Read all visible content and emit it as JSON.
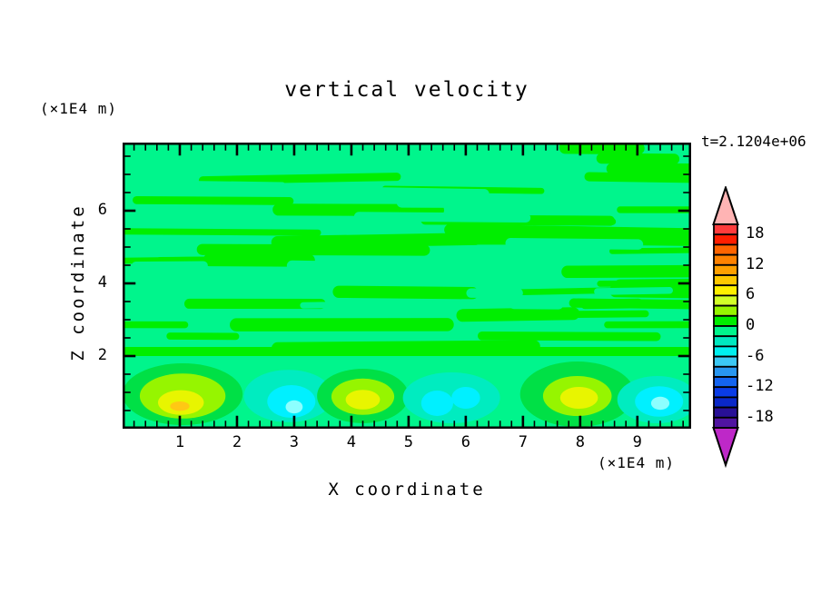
{
  "title": "vertical velocity",
  "timestamp": "t=2.1204e+06",
  "axes": {
    "x": {
      "title": "X coordinate",
      "unit_label": "(×1E4 m)",
      "range": [
        0,
        9.94
      ],
      "major_ticks": [
        1,
        2,
        3,
        4,
        5,
        6,
        7,
        8,
        9
      ],
      "major_tick_labels": [
        "1",
        "2",
        "3",
        "4",
        "5",
        "6",
        "7",
        "8",
        "9"
      ],
      "minor_tick_step": 0.2
    },
    "z": {
      "title": "Z coordinate",
      "unit_label": "(×1E4 m)",
      "range": [
        0,
        7.875
      ],
      "major_ticks": [
        2,
        4,
        6
      ],
      "major_tick_labels": [
        "2",
        "4",
        "6"
      ],
      "minor_tick_step": 0.5
    }
  },
  "colorbar": {
    "labeled_values": [
      18,
      12,
      6,
      0,
      -6,
      -12,
      -18
    ],
    "cell_value_step": 2,
    "value_min": -20,
    "value_max": 20,
    "over_arrow_color": "#ffb4b4",
    "under_arrow_color": "#be28c8"
  },
  "chart_data": {
    "type": "heatmap",
    "title": "vertical velocity",
    "xlabel": "X coordinate (×1E4 m)",
    "ylabel": "Z coordinate (×1E4 m)",
    "time_annotation": "t=2.1204e+06",
    "x_range": [
      0,
      9.94
    ],
    "z_range": [
      0,
      7.875
    ],
    "contour_interval": 2,
    "level_min": -20,
    "level_max": 20,
    "palette_ascending": [
      "#5014a0",
      "#281096",
      "#0a28c8",
      "#0a3ce6",
      "#1464f0",
      "#2896f0",
      "#3cc8f5",
      "#00f0f0",
      "#00e8c0",
      "#00f58c",
      "#00ee00",
      "#96f500",
      "#d2ff28",
      "#fff000",
      "#ffc800",
      "#ffa000",
      "#ff8200",
      "#ff6400",
      "#ff1e00",
      "#ff3c3c"
    ],
    "field_colors": {
      "background": "#00f58c",
      "streak": "#00ee00",
      "blob_ring_green": "#00e046",
      "blob_light_green": "#96f500",
      "blob_yellow": "#e8f500",
      "blob_gold": "#ffc814",
      "blob_turquoise": "#00ecc0",
      "blob_cyan": "#00f0ff",
      "blob_pale_cyan": "#8cffff"
    },
    "texture": {
      "description": "alternating horizontal streaks of 0to2 green over -2to0 spring-green filling z=2 to top",
      "seed": 9,
      "streak_region_z": [
        2.0,
        7.875
      ],
      "band_z": [
        2.0,
        2.25
      ]
    },
    "blobs": [
      {
        "sign": "positive",
        "center_x": 1.05,
        "center_z": 0.95,
        "peak_range": "8 to 10",
        "layers": [
          {
            "color_key": "blob_ring_green",
            "x": 1.05,
            "z": 0.95,
            "rx": 1.05,
            "rz": 0.85
          },
          {
            "color_key": "blob_light_green",
            "x": 1.05,
            "z": 0.9,
            "rx": 0.75,
            "rz": 0.62
          },
          {
            "color_key": "blob_yellow",
            "x": 1.02,
            "z": 0.72,
            "rx": 0.4,
            "rz": 0.34
          },
          {
            "color_key": "blob_gold",
            "x": 1.0,
            "z": 0.62,
            "rx": 0.17,
            "rz": 0.13
          }
        ]
      },
      {
        "sign": "negative",
        "center_x": 2.9,
        "center_z": 0.85,
        "peak_range": "-8 to -6",
        "layers": [
          {
            "color_key": "blob_turquoise",
            "x": 2.9,
            "z": 0.9,
            "rx": 0.78,
            "rz": 0.72
          },
          {
            "color_key": "blob_cyan",
            "x": 2.95,
            "z": 0.75,
            "rx": 0.42,
            "rz": 0.45
          },
          {
            "color_key": "blob_pale_cyan",
            "x": 3.0,
            "z": 0.6,
            "rx": 0.15,
            "rz": 0.18
          }
        ]
      },
      {
        "sign": "positive",
        "center_x": 4.2,
        "center_z": 0.9,
        "peak_range": "6 to 8",
        "layers": [
          {
            "color_key": "blob_ring_green",
            "x": 4.2,
            "z": 0.9,
            "rx": 0.8,
            "rz": 0.75
          },
          {
            "color_key": "blob_light_green",
            "x": 4.2,
            "z": 0.88,
            "rx": 0.55,
            "rz": 0.5
          },
          {
            "color_key": "blob_yellow",
            "x": 4.2,
            "z": 0.8,
            "rx": 0.3,
            "rz": 0.27
          }
        ]
      },
      {
        "sign": "negative",
        "center_x": 5.75,
        "center_z": 0.85,
        "peak_range": "-8 to -6",
        "layers": [
          {
            "color_key": "blob_turquoise",
            "x": 5.75,
            "z": 0.85,
            "rx": 0.85,
            "rz": 0.7
          },
          {
            "color_key": "blob_cyan",
            "x": 5.5,
            "z": 0.7,
            "rx": 0.28,
            "rz": 0.35
          },
          {
            "color_key": "blob_cyan",
            "x": 6.0,
            "z": 0.85,
            "rx": 0.25,
            "rz": 0.3
          }
        ]
      },
      {
        "sign": "positive",
        "center_x": 7.95,
        "center_z": 0.95,
        "peak_range": "6 to 8",
        "layers": [
          {
            "color_key": "blob_ring_green",
            "x": 7.95,
            "z": 0.95,
            "rx": 1.0,
            "rz": 0.9
          },
          {
            "color_key": "blob_light_green",
            "x": 7.95,
            "z": 0.9,
            "rx": 0.6,
            "rz": 0.55
          },
          {
            "color_key": "blob_yellow",
            "x": 7.98,
            "z": 0.85,
            "rx": 0.33,
            "rz": 0.3
          }
        ]
      },
      {
        "sign": "negative",
        "center_x": 9.35,
        "center_z": 0.8,
        "peak_range": "-8 to -6",
        "layers": [
          {
            "color_key": "blob_turquoise",
            "x": 9.35,
            "z": 0.8,
            "rx": 0.7,
            "rz": 0.65
          },
          {
            "color_key": "blob_cyan",
            "x": 9.38,
            "z": 0.75,
            "rx": 0.42,
            "rz": 0.42
          },
          {
            "color_key": "blob_pale_cyan",
            "x": 9.4,
            "z": 0.7,
            "rx": 0.16,
            "rz": 0.18
          }
        ]
      }
    ]
  }
}
